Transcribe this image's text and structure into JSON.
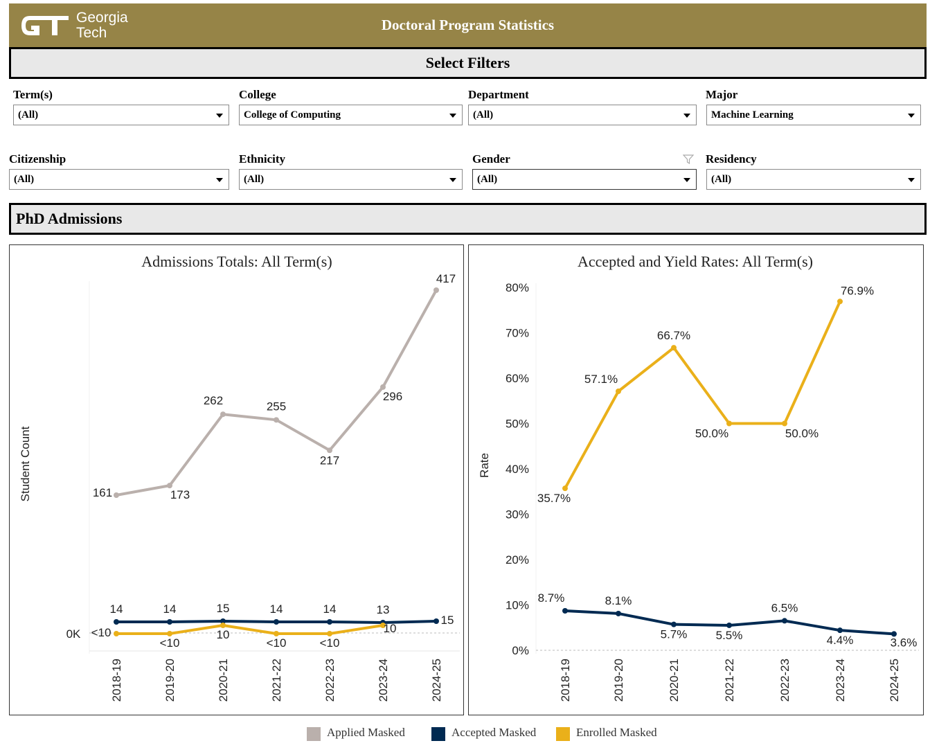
{
  "header": {
    "logo_line1": "Georgia",
    "logo_line2": "Tech",
    "title": "Doctoral Program Statistics",
    "bg_color": "#968447"
  },
  "filters": {
    "section_title": "Select Filters",
    "items": [
      {
        "label": "Term(s)",
        "value": "(All)"
      },
      {
        "label": "College",
        "value": "College of Computing"
      },
      {
        "label": "Department",
        "value": "(All)"
      },
      {
        "label": "Major",
        "value": "Machine Learning"
      },
      {
        "label": "Citizenship",
        "value": "(All)"
      },
      {
        "label": "Ethnicity",
        "value": "(All)"
      },
      {
        "label": "Gender",
        "value": "(All)"
      },
      {
        "label": "Residency",
        "value": "(All)"
      }
    ]
  },
  "section": {
    "title": "PhD Admissions"
  },
  "legend": [
    {
      "label": "Applied Masked",
      "color": "#bab0ac"
    },
    {
      "label": "Accepted Masked",
      "color": "#002a52"
    },
    {
      "label": "Enrolled Masked",
      "color": "#eab01a"
    }
  ],
  "chart_data": [
    {
      "type": "line",
      "title": "Admissions Totals: All Term(s)",
      "ylabel": "Student Count",
      "xlabel": "",
      "y_tick_labels": [
        "0K"
      ],
      "categories": [
        "2018-19",
        "2019-20",
        "2020-21",
        "2021-22",
        "2022-23",
        "2023-24",
        "2024-25"
      ],
      "series": [
        {
          "name": "Applied Masked",
          "color": "#bab0ac",
          "values": [
            161,
            173,
            262,
            255,
            217,
            296,
            417
          ],
          "labels": [
            "161",
            "173",
            "262",
            "255",
            "217",
            "296",
            "417"
          ]
        },
        {
          "name": "Accepted Masked",
          "color": "#002a52",
          "values": [
            14,
            14,
            15,
            14,
            14,
            13,
            15
          ],
          "labels": [
            "14",
            "14",
            "15",
            "14",
            "14",
            "13",
            "15"
          ]
        },
        {
          "name": "Enrolled Masked",
          "color": "#eab01a",
          "values": [
            0,
            0,
            10,
            0,
            0,
            10,
            null
          ],
          "labels": [
            "<10",
            "<10",
            "10",
            "<10",
            "<10",
            "10",
            ""
          ]
        }
      ],
      "grid": false
    },
    {
      "type": "line",
      "title": "Accepted and Yield Rates: All Term(s)",
      "ylabel": "Rate",
      "xlabel": "",
      "ylim": [
        0,
        80
      ],
      "y_tick_labels": [
        "0%",
        "10%",
        "20%",
        "30%",
        "40%",
        "50%",
        "60%",
        "70%",
        "80%"
      ],
      "categories": [
        "2018-19",
        "2019-20",
        "2020-21",
        "2021-22",
        "2022-23",
        "2023-24",
        "2024-25"
      ],
      "series": [
        {
          "name": "Enrolled Masked",
          "color": "#eab01a",
          "values": [
            35.7,
            57.1,
            66.7,
            50.0,
            50.0,
            76.9,
            null
          ],
          "labels": [
            "35.7%",
            "57.1%",
            "66.7%",
            "50.0%",
            "50.0%",
            "76.9%",
            ""
          ]
        },
        {
          "name": "Accepted Masked",
          "color": "#002a52",
          "values": [
            8.7,
            8.1,
            5.7,
            5.5,
            6.5,
            4.4,
            3.6
          ],
          "labels": [
            "8.7%",
            "8.1%",
            "5.7%",
            "5.5%",
            "6.5%",
            "4.4%",
            "3.6%"
          ]
        }
      ],
      "grid": false
    }
  ]
}
